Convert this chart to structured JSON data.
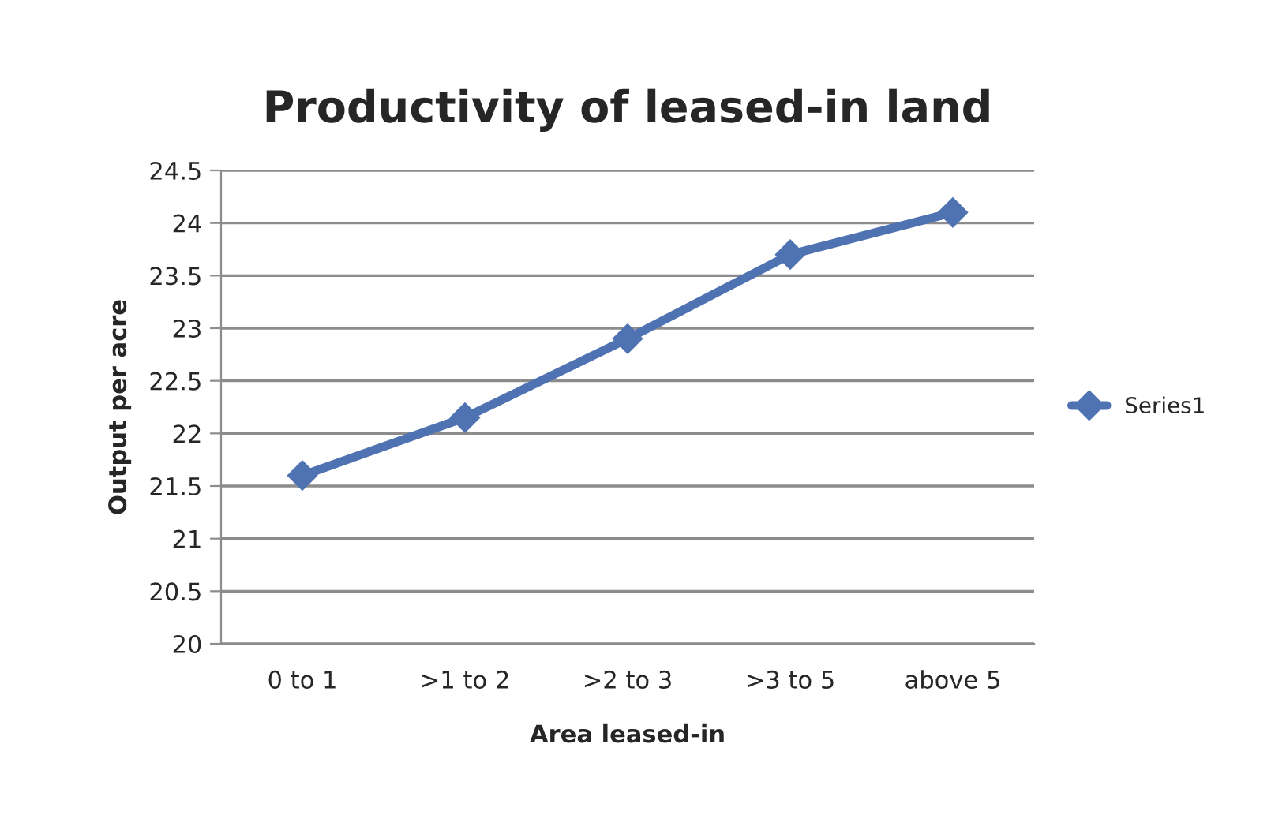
{
  "chart_data": {
    "type": "line",
    "title": "Productivity of leased-in land",
    "xlabel": "Area leased-in",
    "ylabel": "Output per acre",
    "categories": [
      "0 to 1",
      ">1 to 2",
      ">2 to 3",
      ">3 to 5",
      "above 5"
    ],
    "series": [
      {
        "name": "Series1",
        "color": "#4f72b3",
        "values": [
          21.6,
          22.15,
          22.9,
          23.7,
          24.1
        ]
      }
    ],
    "ylim": [
      20,
      24.5
    ],
    "yticks": [
      20,
      20.5,
      21,
      21.5,
      22,
      22.5,
      23,
      23.5,
      24,
      24.5
    ],
    "grid": "y",
    "legend": "right",
    "marker": "diamond",
    "line_style": "solid"
  }
}
